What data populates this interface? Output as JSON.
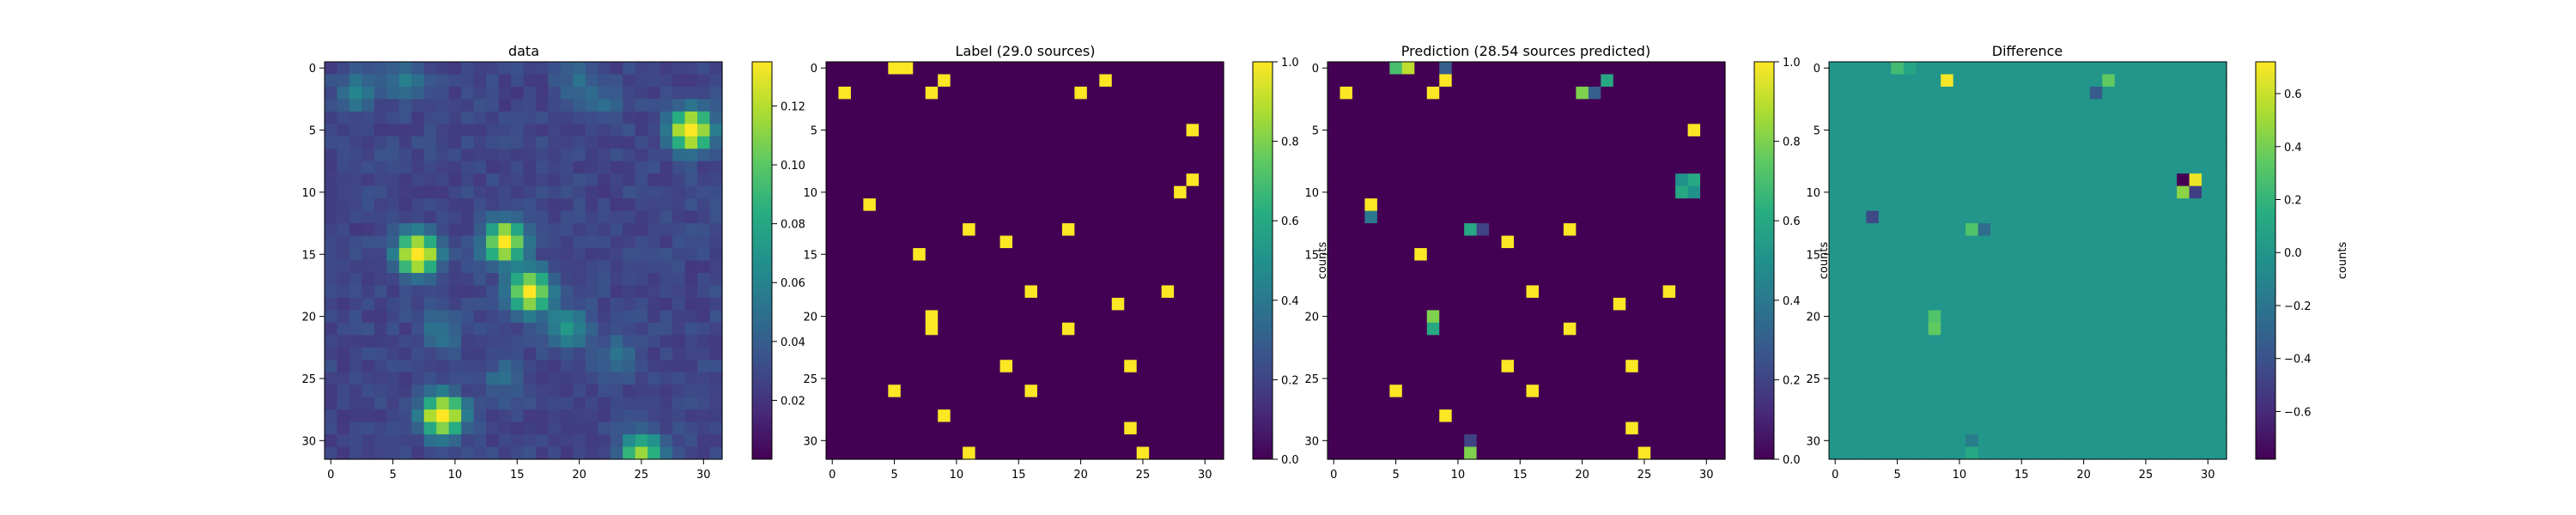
{
  "chart_data": [
    {
      "type": "heatmap",
      "title": "data",
      "size": 32,
      "xticks": [
        0,
        5,
        10,
        15,
        20,
        25,
        30
      ],
      "yticks": [
        0,
        5,
        10,
        15,
        20,
        25,
        30
      ],
      "colorbar": {
        "label": "",
        "min": 0,
        "max": 0.135,
        "ticks": [
          0.02,
          0.04,
          0.06,
          0.08,
          0.1,
          0.12
        ],
        "tick_labels": [
          "0.02",
          "0.04",
          "0.06",
          "0.08",
          "0.10",
          "0.12"
        ]
      },
      "background_level": 0.028,
      "sources": [
        {
          "x": 7,
          "y": 15,
          "amp": 0.13
        },
        {
          "x": 14,
          "y": 14,
          "amp": 0.12
        },
        {
          "x": 16,
          "y": 18,
          "amp": 0.12
        },
        {
          "x": 9,
          "y": 28,
          "amp": 0.13
        },
        {
          "x": 29,
          "y": 5,
          "amp": 0.13
        },
        {
          "x": 25,
          "y": 31,
          "amp": 0.085
        },
        {
          "x": 19,
          "y": 21,
          "amp": 0.045
        },
        {
          "x": 2,
          "y": 2,
          "amp": 0.03
        },
        {
          "x": 6,
          "y": 1,
          "amp": 0.025
        },
        {
          "x": 20,
          "y": 1,
          "amp": 0.02
        },
        {
          "x": 9,
          "y": 21,
          "amp": 0.025
        },
        {
          "x": 22,
          "y": 3,
          "amp": 0.015
        },
        {
          "x": 14,
          "y": 25,
          "amp": 0.02
        },
        {
          "x": 23,
          "y": 23,
          "amp": 0.02
        }
      ]
    },
    {
      "type": "heatmap",
      "title": "Label (29.0 sources)",
      "size": 32,
      "xticks": [
        0,
        5,
        10,
        15,
        20,
        25,
        30
      ],
      "yticks": [
        0,
        5,
        10,
        15,
        20,
        25,
        30
      ],
      "colorbar": {
        "label": "counts",
        "min": 0,
        "max": 1,
        "ticks": [
          0.0,
          0.2,
          0.4,
          0.6,
          0.8,
          1.0
        ],
        "tick_labels": [
          "0.0",
          "0.2",
          "0.4",
          "0.6",
          "0.8",
          "1.0"
        ]
      },
      "background_level": 0,
      "cells": [
        [
          5,
          0,
          1
        ],
        [
          6,
          0,
          1
        ],
        [
          9,
          1,
          1
        ],
        [
          22,
          1,
          1
        ],
        [
          1,
          2,
          1
        ],
        [
          8,
          2,
          1
        ],
        [
          20,
          2,
          1
        ],
        [
          29,
          5,
          1
        ],
        [
          29,
          9,
          1
        ],
        [
          28,
          10,
          1
        ],
        [
          3,
          11,
          1
        ],
        [
          11,
          13,
          1
        ],
        [
          19,
          13,
          1
        ],
        [
          14,
          14,
          1
        ],
        [
          7,
          15,
          1
        ],
        [
          16,
          18,
          1
        ],
        [
          27,
          18,
          1
        ],
        [
          23,
          19,
          1
        ],
        [
          8,
          20,
          1
        ],
        [
          8,
          21,
          1
        ],
        [
          19,
          21,
          1
        ],
        [
          14,
          24,
          1
        ],
        [
          24,
          24,
          1
        ],
        [
          5,
          26,
          1
        ],
        [
          16,
          26,
          1
        ],
        [
          9,
          28,
          1
        ],
        [
          24,
          29,
          1
        ],
        [
          11,
          31,
          1
        ],
        [
          25,
          31,
          1
        ]
      ]
    },
    {
      "type": "heatmap",
      "title": "Prediction (28.54 sources predicted)",
      "size": 32,
      "xticks": [
        0,
        5,
        10,
        15,
        20,
        25,
        30
      ],
      "yticks": [
        0,
        5,
        10,
        15,
        20,
        25,
        30
      ],
      "colorbar": {
        "label": "counts",
        "min": 0,
        "max": 1,
        "ticks": [
          0.0,
          0.2,
          0.4,
          0.6,
          0.8,
          1.0
        ],
        "tick_labels": [
          "0.0",
          "0.2",
          "0.4",
          "0.6",
          "0.8",
          "1.0"
        ]
      },
      "background_level": 0,
      "cells": [
        [
          5,
          0,
          0.7
        ],
        [
          6,
          0,
          0.9
        ],
        [
          9,
          0,
          0.3
        ],
        [
          9,
          1,
          1
        ],
        [
          22,
          1,
          0.6
        ],
        [
          1,
          2,
          1
        ],
        [
          8,
          2,
          1
        ],
        [
          20,
          2,
          0.8
        ],
        [
          21,
          2,
          0.3
        ],
        [
          29,
          5,
          1
        ],
        [
          28,
          9,
          0.5
        ],
        [
          29,
          9,
          0.6
        ],
        [
          28,
          10,
          0.6
        ],
        [
          29,
          10,
          0.5
        ],
        [
          3,
          11,
          1
        ],
        [
          3,
          12,
          0.4
        ],
        [
          11,
          13,
          0.6
        ],
        [
          12,
          13,
          0.2
        ],
        [
          19,
          13,
          1
        ],
        [
          14,
          14,
          1
        ],
        [
          7,
          15,
          1
        ],
        [
          16,
          18,
          1
        ],
        [
          27,
          18,
          1
        ],
        [
          23,
          19,
          1
        ],
        [
          8,
          20,
          0.8
        ],
        [
          8,
          21,
          0.6
        ],
        [
          19,
          21,
          1
        ],
        [
          14,
          24,
          1
        ],
        [
          24,
          24,
          1
        ],
        [
          5,
          26,
          1
        ],
        [
          16,
          26,
          1
        ],
        [
          9,
          28,
          1
        ],
        [
          24,
          29,
          1
        ],
        [
          11,
          30,
          0.2
        ],
        [
          11,
          31,
          0.8
        ],
        [
          25,
          31,
          1
        ]
      ]
    },
    {
      "type": "heatmap",
      "title": "Difference",
      "size": 32,
      "xticks": [
        0,
        5,
        10,
        15,
        20,
        25,
        30
      ],
      "yticks": [
        0,
        5,
        10,
        15,
        20,
        25,
        30
      ],
      "colorbar": {
        "label": "counts",
        "min": -0.78,
        "max": 0.72,
        "ticks": [
          -0.6,
          -0.4,
          -0.2,
          0.0,
          0.2,
          0.4,
          0.6
        ],
        "tick_labels": [
          "−0.6",
          "−0.4",
          "−0.2",
          "0.0",
          "0.2",
          "0.4",
          "0.6"
        ]
      },
      "background_level": 0,
      "cells": [
        [
          5,
          0,
          0.25
        ],
        [
          6,
          0,
          0.1
        ],
        [
          9,
          1,
          0.7
        ],
        [
          22,
          1,
          0.35
        ],
        [
          21,
          2,
          -0.35
        ],
        [
          28,
          9,
          -0.78
        ],
        [
          29,
          9,
          0.68
        ],
        [
          28,
          10,
          0.45
        ],
        [
          29,
          10,
          -0.5
        ],
        [
          3,
          12,
          -0.45
        ],
        [
          11,
          13,
          0.3
        ],
        [
          12,
          13,
          -0.25
        ],
        [
          8,
          20,
          0.3
        ],
        [
          8,
          21,
          0.35
        ],
        [
          11,
          30,
          -0.15
        ],
        [
          11,
          31,
          0.12
        ]
      ]
    }
  ]
}
